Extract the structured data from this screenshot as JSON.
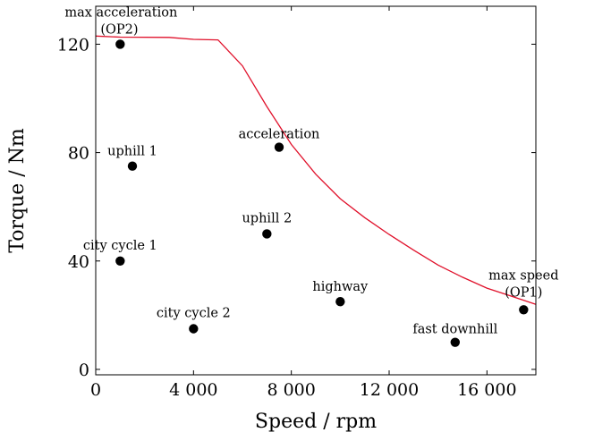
{
  "chart_data": {
    "type": "scatter",
    "title": "",
    "xlabel": "Speed / rpm",
    "ylabel": "Torque / Nm",
    "xlim": [
      0,
      18000
    ],
    "ylim": [
      -2,
      134
    ],
    "x_ticks": [
      0,
      4000,
      8000,
      12000,
      16000
    ],
    "x_tick_labels": [
      "0",
      "4 000",
      "8 000",
      "12 000",
      "16 000"
    ],
    "y_ticks": [
      0,
      40,
      80,
      120
    ],
    "y_tick_labels": [
      "0",
      "40",
      "80",
      "120"
    ],
    "grid": false,
    "colors": {
      "curve": "#e0102a",
      "points": "#000000",
      "axes": "#000000"
    },
    "curve": {
      "x": [
        0,
        1000,
        3000,
        4000,
        5000,
        6000,
        7000,
        8000,
        9000,
        10000,
        11000,
        12000,
        13000,
        14000,
        15000,
        16000,
        17000,
        18000
      ],
      "y": [
        123,
        122.6,
        122.5,
        121.8,
        121.6,
        112,
        97,
        83,
        72,
        63,
        56,
        49.8,
        44,
        38.5,
        34,
        30,
        27,
        24
      ]
    },
    "points": [
      {
        "label": "max acceleration (OP2)",
        "x": 1000,
        "y": 120
      },
      {
        "label": "uphill 1",
        "x": 1500,
        "y": 75
      },
      {
        "label": "city cycle 1",
        "x": 1000,
        "y": 40
      },
      {
        "label": "city cycle 2",
        "x": 4000,
        "y": 15
      },
      {
        "label": "acceleration",
        "x": 7500,
        "y": 82
      },
      {
        "label": "uphill 2",
        "x": 7000,
        "y": 50
      },
      {
        "label": "highway",
        "x": 10000,
        "y": 25
      },
      {
        "label": "fast downhill",
        "x": 14700,
        "y": 10
      },
      {
        "label": "max speed (OP1)",
        "x": 17500,
        "y": 22
      }
    ]
  }
}
